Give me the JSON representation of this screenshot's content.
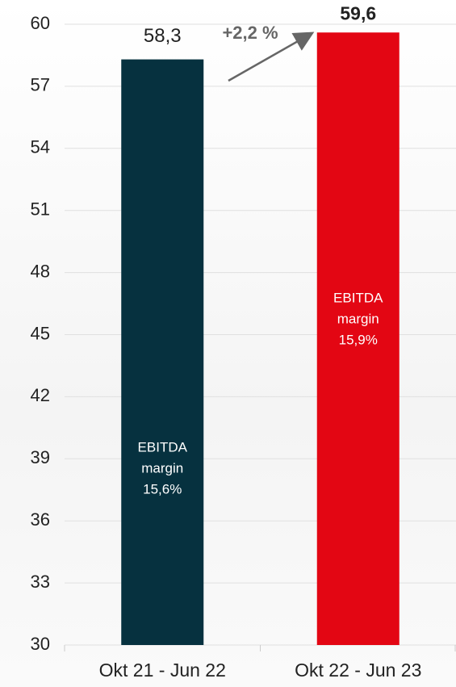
{
  "chart_data": {
    "type": "bar",
    "categories": [
      "Okt 21 - Jun 22",
      "Okt 22 - Jun 23"
    ],
    "series": [
      {
        "colors": [
          "#06313f",
          "#e30613"
        ],
        "values": [
          58.3,
          59.6
        ],
        "value_labels": [
          "58,3",
          "59,6"
        ]
      }
    ],
    "inner_labels": [
      [
        "EBITDA",
        "margin",
        "15,6%"
      ],
      [
        "EBITDA",
        "margin",
        "15,9%"
      ]
    ],
    "annotation": "+2,2 %",
    "ylim": [
      30,
      60
    ],
    "yticks": [
      30,
      33,
      36,
      39,
      42,
      45,
      48,
      51,
      54,
      57,
      60
    ],
    "grid": true
  }
}
